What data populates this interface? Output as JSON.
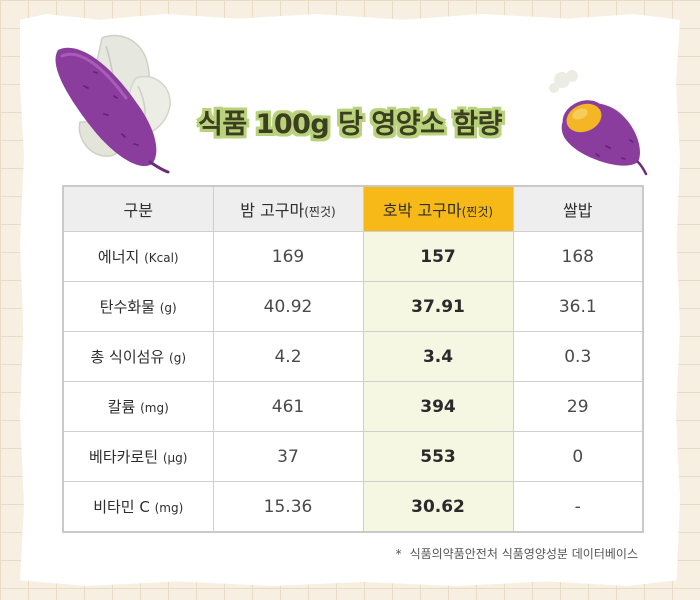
{
  "title": "식품 100g 당 영양소 함량",
  "colors": {
    "header_bg": "#eeeeee",
    "highlight_header": "#f6b918",
    "highlight_column": "#f5f7e3",
    "title_outline": "#b9d27c",
    "sweet_potato_skin": "#8a3d9c",
    "pumpkin_flesh": "#f4b624"
  },
  "table": {
    "headers": [
      {
        "main": "구분",
        "unit": ""
      },
      {
        "main": "밤 고구마",
        "unit": "(찐것)"
      },
      {
        "main": "호박 고구마",
        "unit": "(찐것)"
      },
      {
        "main": "쌀밥",
        "unit": ""
      }
    ],
    "rows": [
      {
        "label": "에너지",
        "unit": "(Kcal)",
        "values": [
          "169",
          "157",
          "168"
        ]
      },
      {
        "label": "탄수화물",
        "unit": "(g)",
        "values": [
          "40.92",
          "37.91",
          "36.1"
        ]
      },
      {
        "label": "총 식이섬유",
        "unit": "(g)",
        "values": [
          "4.2",
          "3.4",
          "0.3"
        ]
      },
      {
        "label": "칼륨",
        "unit": "(mg)",
        "values": [
          "461",
          "394",
          "29"
        ]
      },
      {
        "label": "베타카로틴",
        "unit": "(μg)",
        "values": [
          "37",
          "553",
          "0"
        ]
      },
      {
        "label": "비타민 C",
        "unit": "(mg)",
        "values": [
          "15.36",
          "30.62",
          "-"
        ]
      }
    ]
  },
  "footnote": {
    "marker": "*",
    "text": "식품의약품안전처 식품영양성분 데이터베이스"
  },
  "icons": {
    "left": "sweet-potato-with-leaves-icon",
    "right": "cut-pumpkin-sweet-potato-icon"
  }
}
